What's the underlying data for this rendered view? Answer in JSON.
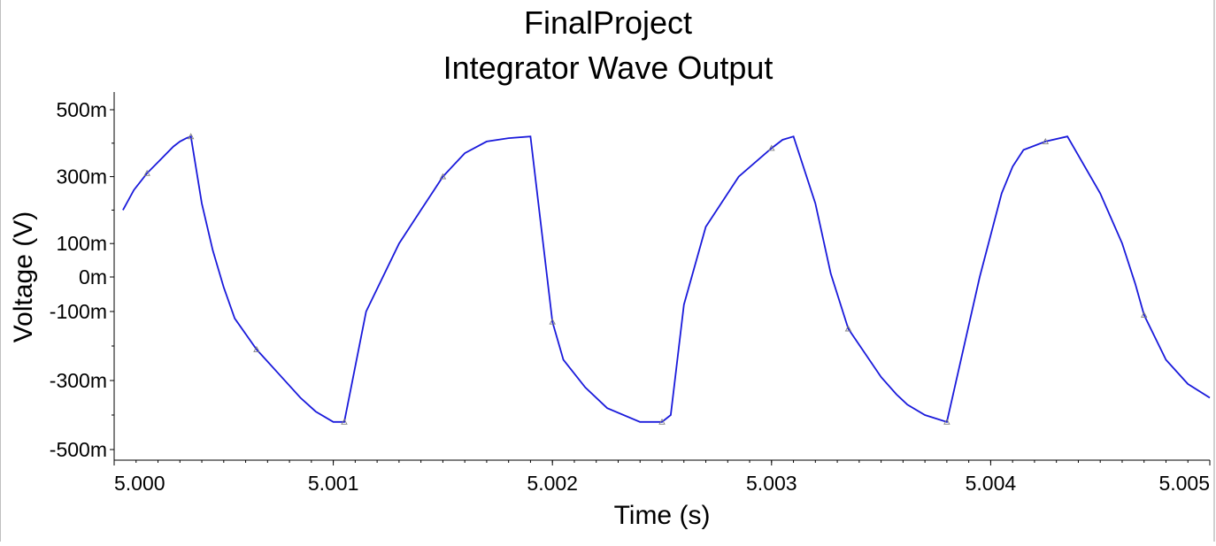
{
  "chart_data": {
    "type": "line",
    "title": "FinalProject",
    "subtitle": "Integrator Wave Output",
    "xlabel": "Time (s)",
    "ylabel": "Voltage (V)",
    "xlim": [
      5.0,
      5.005
    ],
    "ylim": [
      -0.5,
      0.5
    ],
    "x_ticks": [
      5.0,
      5.001,
      5.002,
      5.003,
      5.004,
      5.005
    ],
    "x_tick_labels": [
      "5.000",
      "5.001",
      "5.002",
      "5.003",
      "5.004",
      "5.005"
    ],
    "y_ticks": [
      0.5,
      0.3,
      0.1,
      0,
      -0.1,
      -0.3,
      -0.5
    ],
    "y_tick_labels": [
      "500m",
      "300m",
      "100m",
      "0m",
      "-100m",
      "-300m",
      "-500m"
    ],
    "grid": false,
    "line_color": "#1a1adb",
    "marker_color": "#808080",
    "series": [
      {
        "x": [
          4.99995,
          5.00004,
          5.00009,
          5.00015,
          5.00021,
          5.00027,
          5.0003,
          5.00033,
          5.00035,
          5.0004,
          5.00045,
          5.0005,
          5.00055,
          5.00065,
          5.00075,
          5.00085,
          5.00092,
          5.001,
          5.00105,
          5.00115,
          5.0013,
          5.0014,
          5.00146,
          5.0015,
          5.0016,
          5.0017,
          5.0018,
          5.0019,
          5.002,
          5.00205,
          5.00215,
          5.00225,
          5.0024,
          5.0025,
          5.00254,
          5.0026,
          5.0027,
          5.00285,
          5.003,
          5.00305,
          5.0031,
          5.0032,
          5.00327,
          5.00335,
          5.0035,
          5.00357,
          5.00362,
          5.0037,
          5.0038,
          5.00395,
          5.00405,
          5.0041,
          5.00415,
          5.00425,
          5.00435,
          5.0045,
          5.0046,
          5.00466,
          5.0047,
          5.0048,
          5.0049,
          5.005
        ],
        "y": [
          0.09,
          0.2,
          0.26,
          0.31,
          0.35,
          0.39,
          0.405,
          0.415,
          0.42,
          0.22,
          0.08,
          -0.03,
          -0.12,
          -0.21,
          -0.28,
          -0.35,
          -0.39,
          -0.42,
          -0.42,
          -0.1,
          0.1,
          0.2,
          0.26,
          0.3,
          0.37,
          0.405,
          0.415,
          0.42,
          -0.13,
          -0.24,
          -0.32,
          -0.38,
          -0.42,
          -0.42,
          -0.4,
          -0.08,
          0.15,
          0.3,
          0.385,
          0.41,
          0.42,
          0.22,
          0.01,
          -0.15,
          -0.29,
          -0.34,
          -0.37,
          -0.4,
          -0.42,
          0.0,
          0.25,
          0.33,
          0.38,
          0.405,
          0.42,
          0.25,
          0.1,
          -0.02,
          -0.11,
          -0.24,
          -0.31,
          -0.35
        ]
      }
    ]
  }
}
